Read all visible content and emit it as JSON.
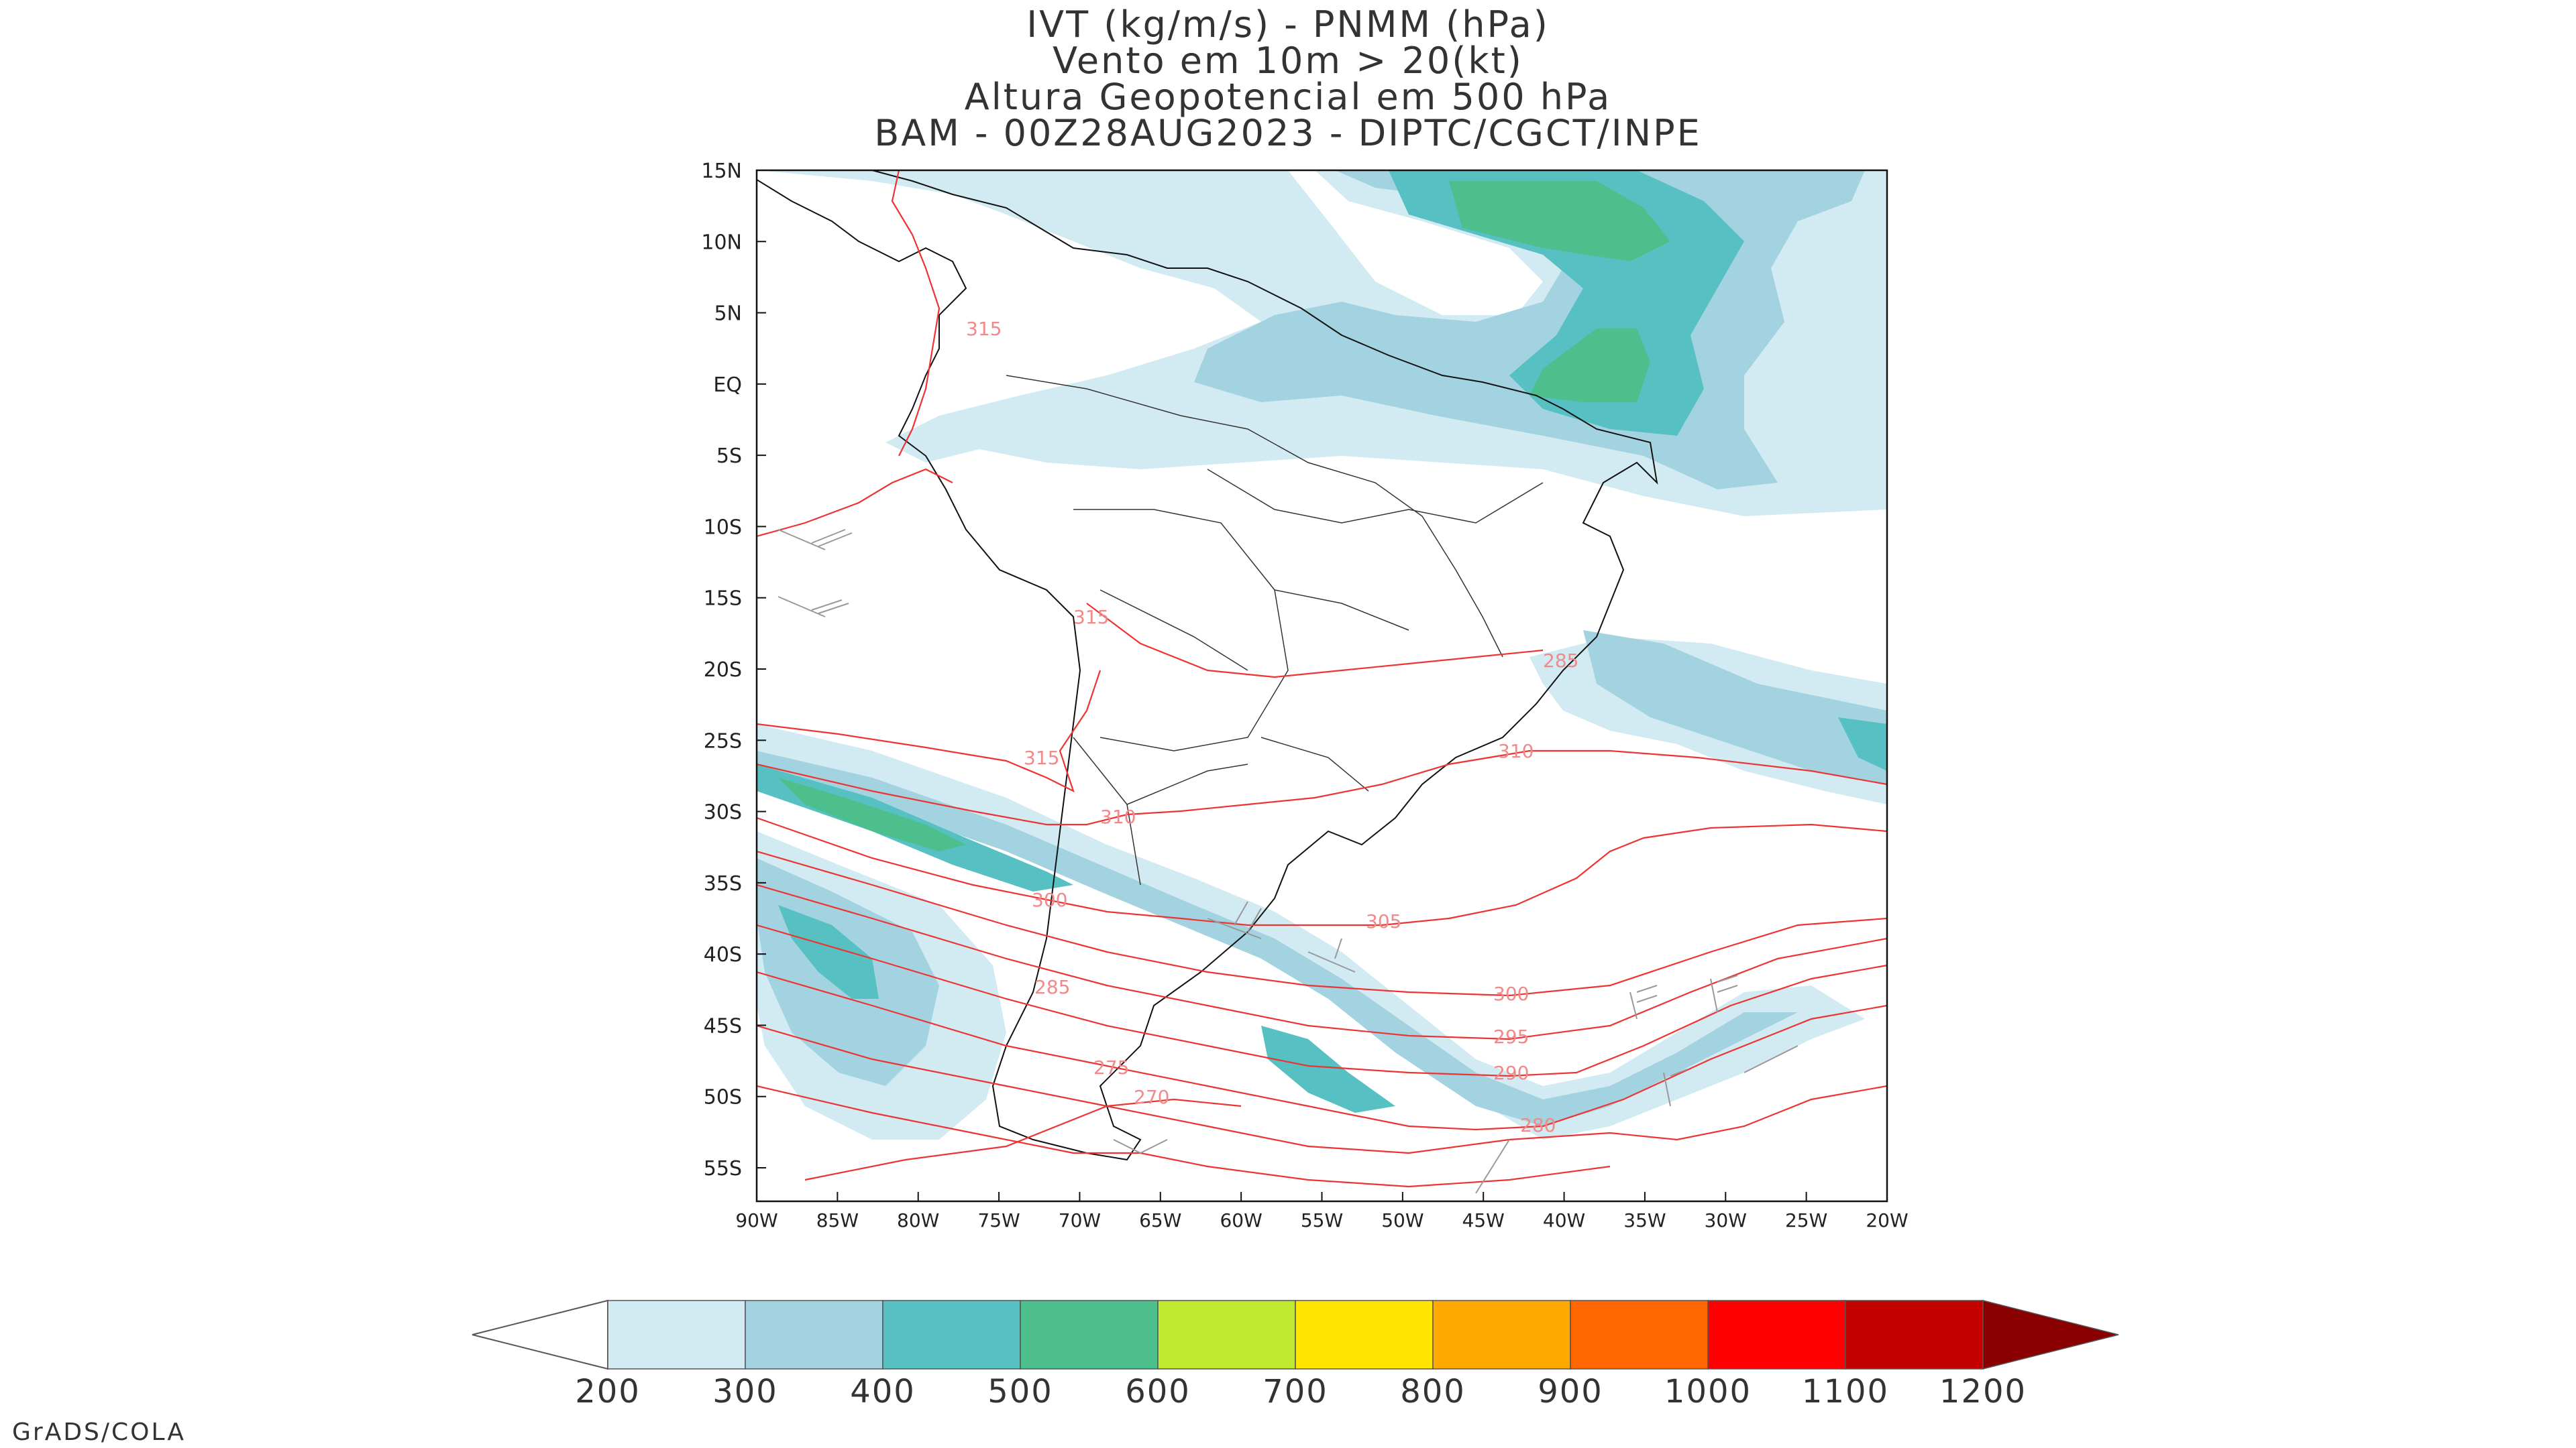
{
  "title_lines": [
    "IVT (kg/m/s) - PNMM (hPa)",
    "Vento em 10m > 20(kt)",
    "Altura Geopotencial em 500 hPa",
    "BAM - 00Z28AUG2023 - DIPTC/CGCT/INPE"
  ],
  "lat_labels": [
    "15N",
    "10N",
    "5N",
    "EQ",
    "5S",
    "10S",
    "15S",
    "20S",
    "25S",
    "30S",
    "35S",
    "40S",
    "45S",
    "50S",
    "55S"
  ],
  "lon_labels": [
    "90W",
    "85W",
    "80W",
    "75W",
    "70W",
    "65W",
    "60W",
    "55W",
    "50W",
    "45W",
    "40W",
    "35W",
    "30W",
    "25W",
    "20W"
  ],
  "contour_labels": [
    "315",
    "315",
    "315",
    "310",
    "310",
    "305",
    "300",
    "295",
    "290",
    "280",
    "285",
    "275",
    "270",
    "300",
    "285"
  ],
  "colorbar": {
    "ticks": [
      "200",
      "300",
      "400",
      "500",
      "600",
      "700",
      "800",
      "900",
      "1000",
      "1100",
      "1200"
    ],
    "colors": [
      "#d2eaf1",
      "#a3d3e0",
      "#56c0c3",
      "#4cbf8c",
      "#bfe92f",
      "#ffe500",
      "#ffaa00",
      "#ff6600",
      "#ff0000",
      "#c20000",
      "#8a0000"
    ]
  },
  "colors": {
    "ivt_light": "#d2eaf1",
    "ivt_mid": "#a3d3e0",
    "ivt_teal": "#56c0c3",
    "ivt_green": "#4cbf8c",
    "contour": "#ee3333",
    "wind_barb": "#999999"
  },
  "footer": "GrADS/COLA"
}
